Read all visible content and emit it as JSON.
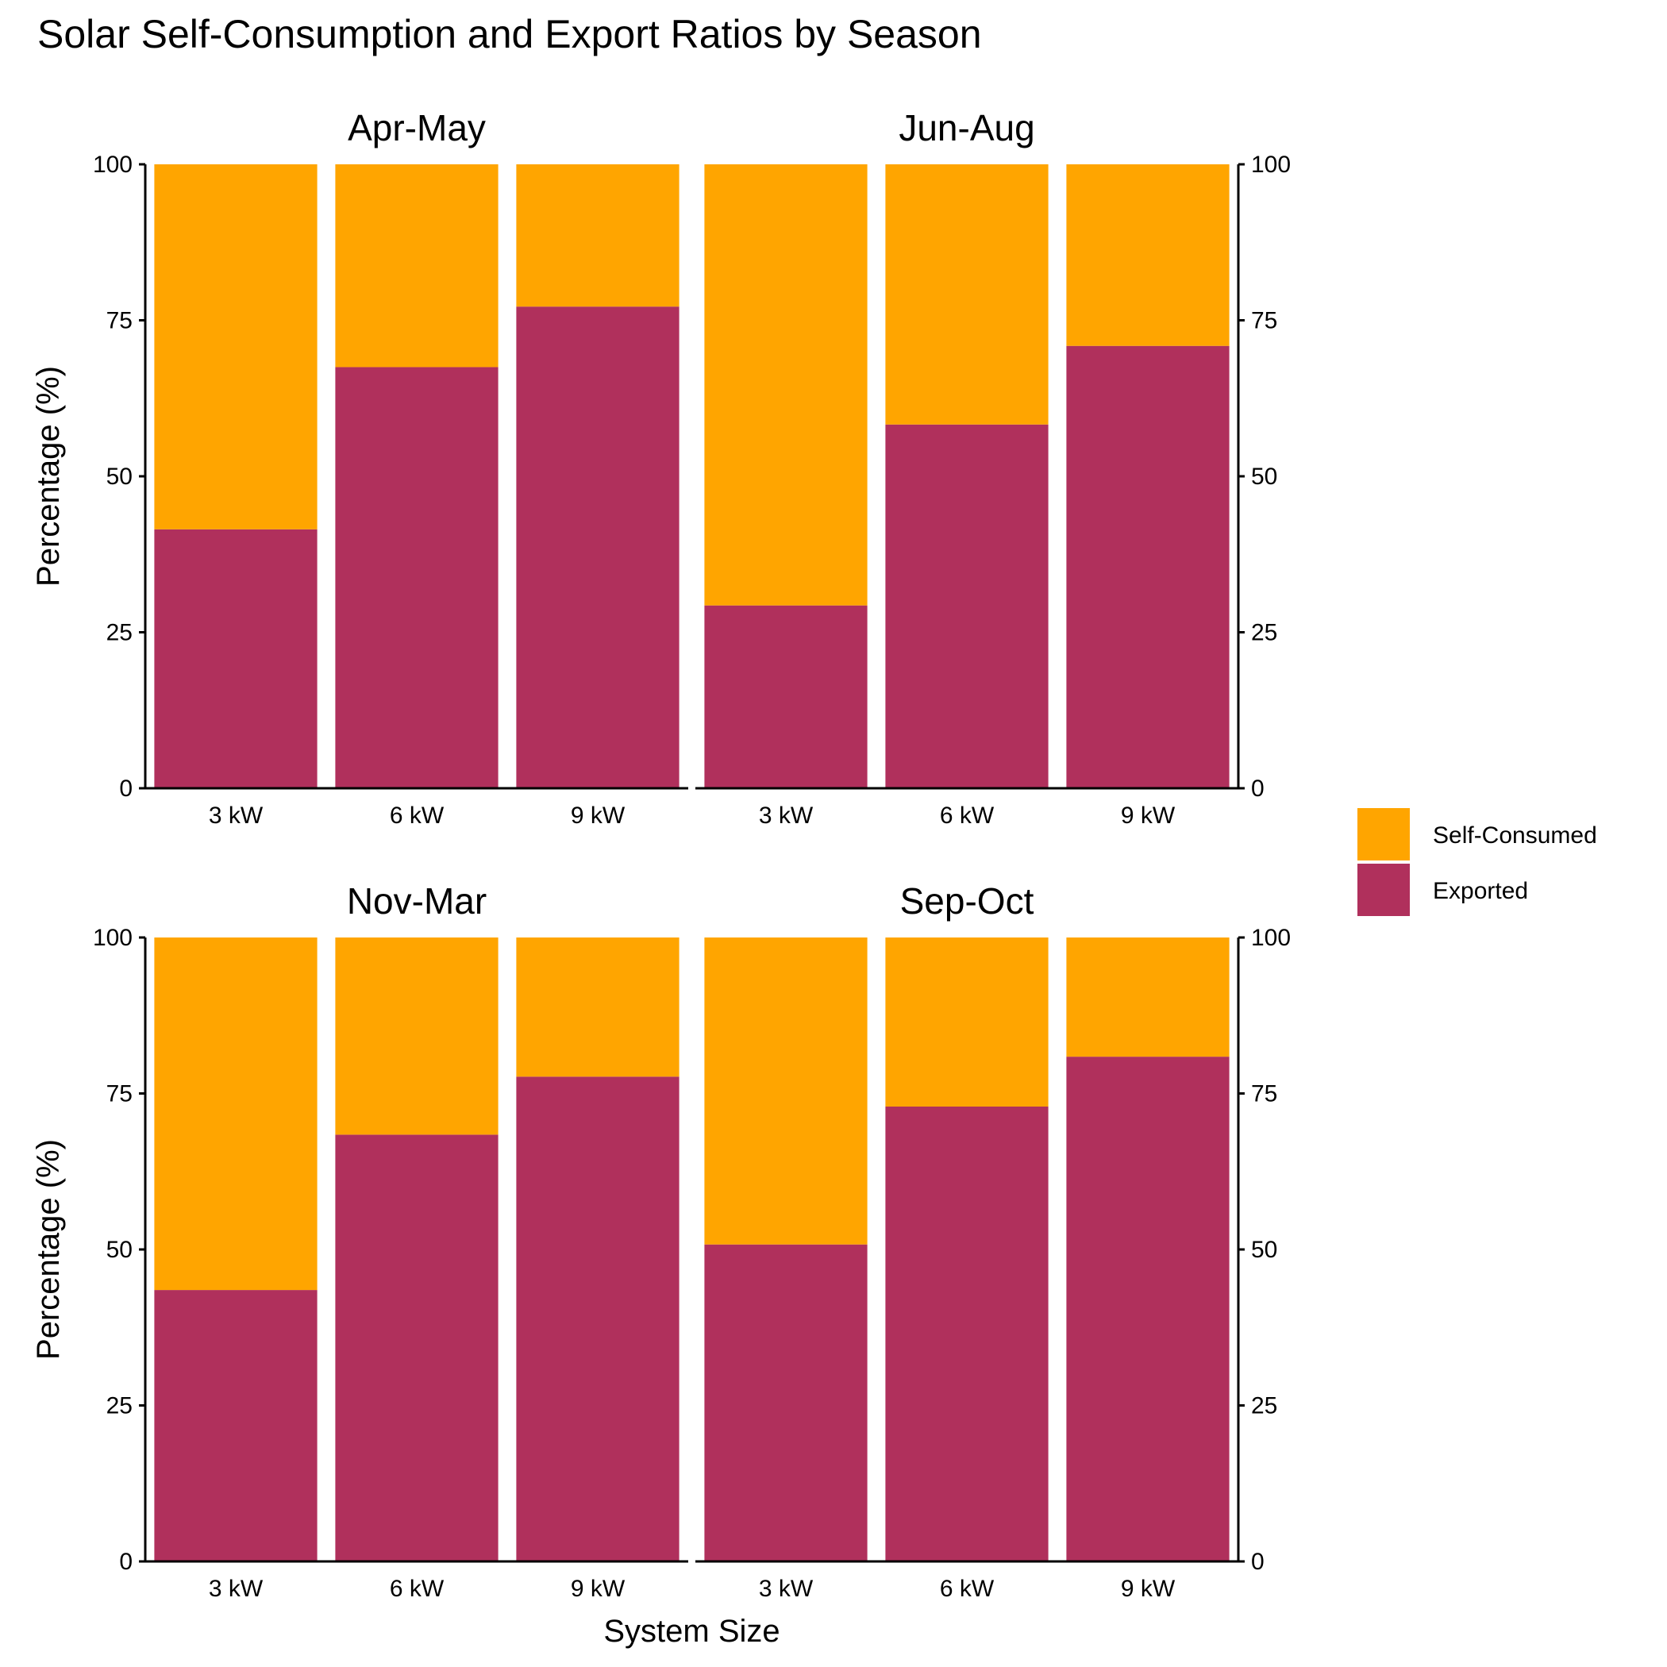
{
  "chart_data": {
    "type": "bar",
    "stacked": true,
    "title": "Solar Self-Consumption and Export Ratios by Season",
    "xlabel": "System Size",
    "ylabel": "Percentage (%)",
    "ylim": [
      0,
      100
    ],
    "yticks": [
      0,
      25,
      50,
      75,
      100
    ],
    "categories": [
      "3 kW",
      "6 kW",
      "9 kW"
    ],
    "legend": {
      "position": "right",
      "entries": [
        {
          "name": "Self-Consumed",
          "color": "#FFA500"
        },
        {
          "name": "Exported",
          "color": "#B0305C"
        }
      ]
    },
    "facets": [
      {
        "name": "Apr-May",
        "exported": [
          41.5,
          67.5,
          77.2
        ],
        "self_consumed": [
          58.5,
          32.5,
          22.8
        ]
      },
      {
        "name": "Jun-Aug",
        "exported": [
          29.3,
          58.3,
          70.9
        ],
        "self_consumed": [
          70.7,
          41.7,
          29.1
        ]
      },
      {
        "name": "Nov-Mar",
        "exported": [
          43.5,
          68.4,
          77.7
        ],
        "self_consumed": [
          56.5,
          31.6,
          22.3
        ]
      },
      {
        "name": "Sep-Oct",
        "exported": [
          50.8,
          72.9,
          80.9
        ],
        "self_consumed": [
          49.2,
          27.1,
          19.1
        ]
      }
    ]
  }
}
